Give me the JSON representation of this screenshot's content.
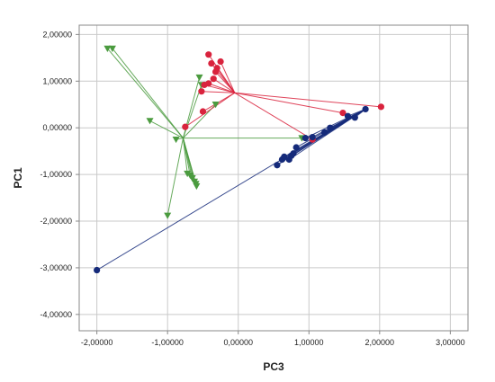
{
  "chart_data": {
    "type": "scatter",
    "xlabel": "PC3",
    "ylabel": "PC1",
    "xlim": [
      -2.25,
      3.25
    ],
    "ylim": [
      -4.35,
      2.2
    ],
    "x_ticks": [
      -2,
      -1,
      0,
      1,
      2,
      3
    ],
    "y_ticks": [
      -4,
      -3,
      -2,
      -1,
      0,
      1,
      2
    ],
    "x_tick_labels": [
      "-2,00000",
      "-1,00000",
      "0,00000",
      "1,00000",
      "2,00000",
      "3,00000"
    ],
    "y_tick_labels": [
      "-4,00000",
      "-3,00000",
      "-2,00000",
      "-1,00000",
      "0,00000",
      "1,00000",
      "2,00000"
    ],
    "grid": true,
    "series": [
      {
        "color": "#4b9b3f",
        "marker": "triangle-down",
        "centroid": [
          -0.78,
          -0.22
        ],
        "points": [
          [
            -1.85,
            1.7
          ],
          [
            -1.78,
            1.7
          ],
          [
            -1.25,
            0.15
          ],
          [
            -1.0,
            -1.88
          ],
          [
            -0.88,
            -0.25
          ],
          [
            -0.55,
            1.08
          ],
          [
            -0.52,
            0.92
          ],
          [
            -0.32,
            0.5
          ],
          [
            -0.72,
            -0.98
          ],
          [
            -0.68,
            -1.02
          ],
          [
            -0.65,
            -1.08
          ],
          [
            -0.62,
            -1.15
          ],
          [
            -0.6,
            -1.2
          ],
          [
            -0.59,
            -1.25
          ],
          [
            0.9,
            -0.22
          ]
        ]
      },
      {
        "color": "#d9233d",
        "marker": "circle",
        "centroid": [
          -0.05,
          0.75
        ],
        "points": [
          [
            -0.42,
            1.57
          ],
          [
            -0.38,
            1.38
          ],
          [
            -0.25,
            1.42
          ],
          [
            -0.3,
            1.28
          ],
          [
            -0.32,
            1.2
          ],
          [
            -0.35,
            1.05
          ],
          [
            -0.42,
            0.95
          ],
          [
            -0.48,
            0.92
          ],
          [
            -0.52,
            0.78
          ],
          [
            -0.5,
            0.35
          ],
          [
            -0.75,
            0.02
          ],
          [
            2.02,
            0.45
          ],
          [
            1.48,
            0.32
          ],
          [
            1.05,
            -0.25
          ]
        ]
      },
      {
        "color": "#152a7a",
        "marker": "circle",
        "centroid": [
          1.8,
          0.4
        ],
        "points": [
          [
            -2.0,
            -3.05
          ],
          [
            0.55,
            -0.8
          ],
          [
            0.62,
            -0.68
          ],
          [
            0.65,
            -0.62
          ],
          [
            0.72,
            -0.68
          ],
          [
            0.75,
            -0.6
          ],
          [
            0.78,
            -0.55
          ],
          [
            0.82,
            -0.42
          ],
          [
            0.95,
            -0.22
          ],
          [
            1.05,
            -0.2
          ],
          [
            1.22,
            -0.1
          ],
          [
            1.3,
            0.0
          ],
          [
            1.55,
            0.25
          ],
          [
            1.65,
            0.22
          ],
          [
            1.8,
            0.4
          ]
        ]
      }
    ]
  }
}
